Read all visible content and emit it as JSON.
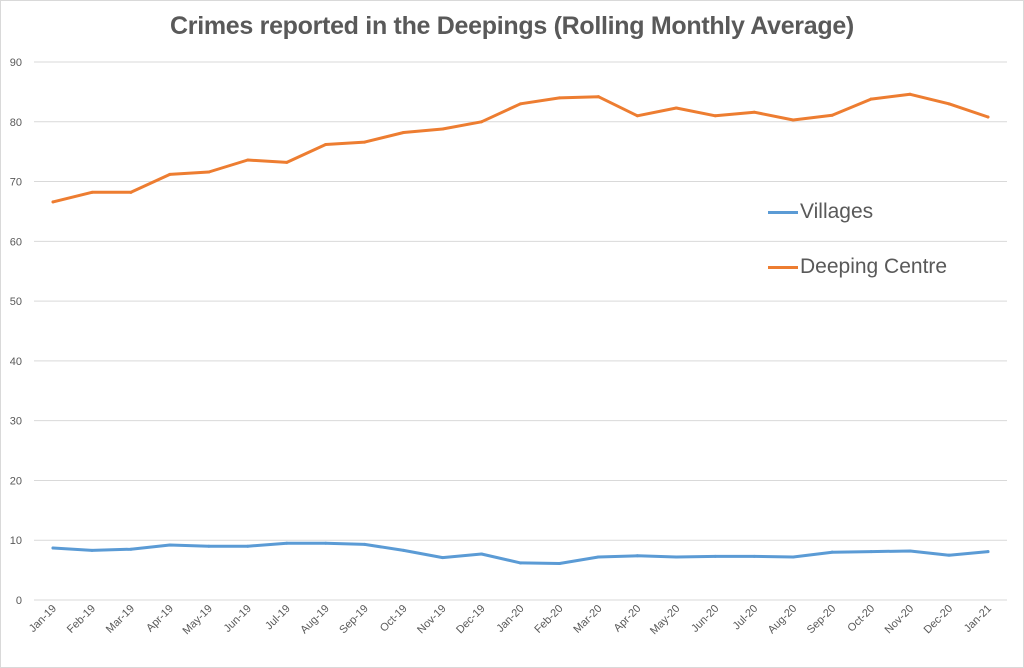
{
  "chart_data": {
    "type": "line",
    "title": "Crimes reported in the Deepings (Rolling Monthly Average)",
    "xlabel": "",
    "ylabel": "",
    "ylim": [
      0,
      90
    ],
    "yticks": [
      "0",
      "10",
      "20",
      "30",
      "40",
      "50",
      "60",
      "70",
      "80",
      "90"
    ],
    "grid": true,
    "legend_position": "right",
    "categories": [
      "Jan-19",
      "Feb-19",
      "Mar-19",
      "Apr-19",
      "May-19",
      "Jun-19",
      "Jul-19",
      "Aug-19",
      "Sep-19",
      "Oct-19",
      "Nov-19",
      "Dec-19",
      "Jan-20",
      "Feb-20",
      "Mar-20",
      "Apr-20",
      "May-20",
      "Jun-20",
      "Jul-20",
      "Aug-20",
      "Sep-20",
      "Oct-20",
      "Nov-20",
      "Dec-20",
      "Jan-21"
    ],
    "series": [
      {
        "name": "Villages",
        "color": "#5b9bd5",
        "values": [
          8.7,
          8.3,
          8.5,
          9.2,
          9.0,
          9.0,
          9.5,
          9.5,
          9.3,
          8.3,
          7.1,
          7.7,
          6.2,
          6.1,
          7.2,
          7.4,
          7.2,
          7.3,
          7.3,
          7.2,
          8.0,
          8.1,
          8.2,
          7.5,
          8.1
        ]
      },
      {
        "name": "Deeping Centre",
        "color": "#ed7d31",
        "values": [
          66.6,
          68.2,
          68.2,
          71.2,
          71.6,
          73.6,
          73.2,
          76.2,
          76.6,
          78.2,
          78.8,
          80.0,
          83.0,
          84.0,
          84.2,
          81.0,
          82.3,
          81.0,
          81.6,
          80.3,
          81.1,
          83.8,
          84.6,
          83.0,
          80.8
        ]
      }
    ]
  }
}
